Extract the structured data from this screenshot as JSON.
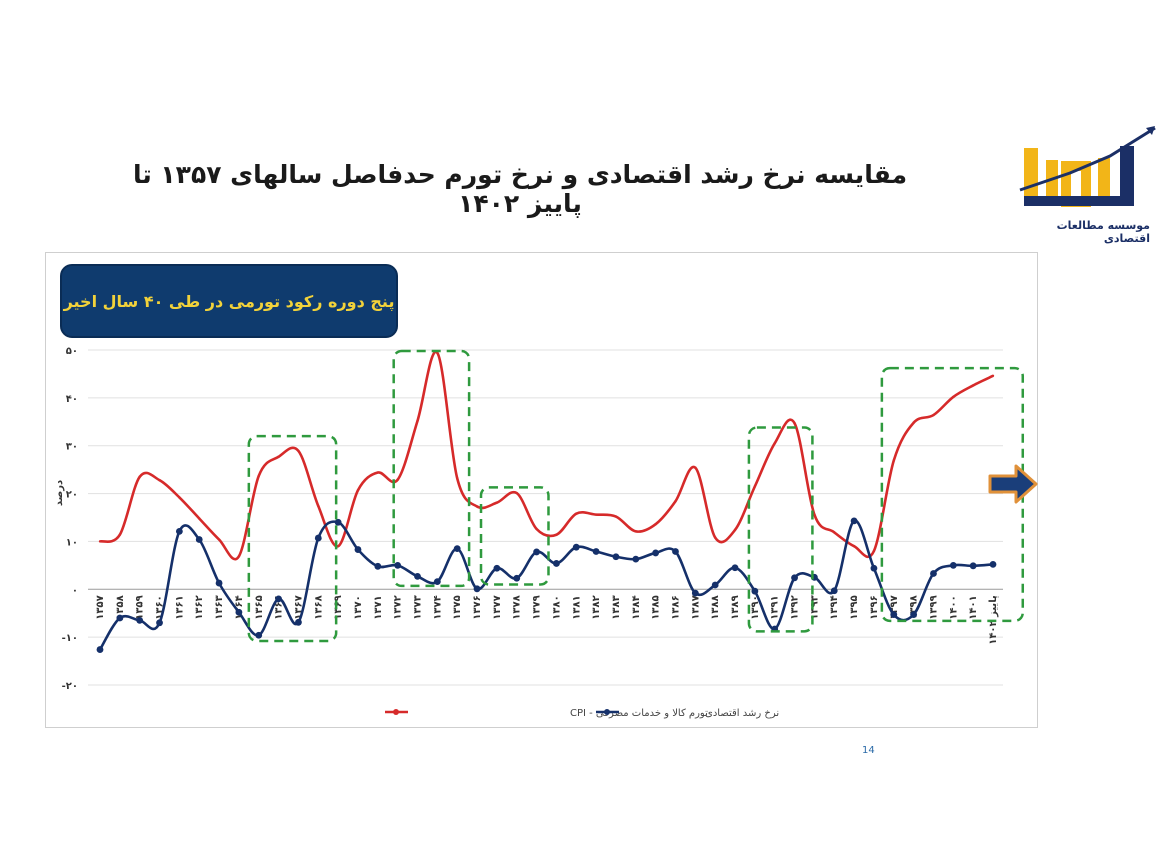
{
  "page": {
    "title": "مقایسه نرخ رشد اقتصادی و نرخ تورم حدفاصل سالهای ۱۳۵۷ تا پاییز ۱۴۰۲",
    "callout": "پنج دوره رکود تورمی در طی ۴۰ سال اخیر",
    "logo_text": "موسسه مطالعات اقتصادی",
    "page_number": "14"
  },
  "colors": {
    "cpi": "#d62a2a",
    "growth": "#15306a",
    "highlight_box": "#2f9a3e",
    "arrow_fill": "#1a3e7a",
    "arrow_border": "#e0913a",
    "callout_bg": "#0f3b6e",
    "callout_text": "#f2d23a"
  },
  "chart_data": {
    "type": "line",
    "ylim": [
      -20,
      50
    ],
    "yticks": [
      "۵۰",
      "۴۰",
      "۳۰",
      "۲۰",
      "۱۰",
      "۰",
      "-۱۰",
      "-۲۰"
    ],
    "ytick_values": [
      50,
      40,
      30,
      20,
      10,
      0,
      -10,
      -20
    ],
    "ylabel": "درصد",
    "grid": true,
    "legend_position": "bottom",
    "categories": [
      "۱۳۵۷",
      "۱۳۵۸",
      "۱۳۵۹",
      "۱۳۶۰",
      "۱۳۶۱",
      "۱۳۶۲",
      "۱۳۶۳",
      "۱۳۶۴",
      "۱۳۶۵",
      "۱۳۶۶",
      "۱۳۶۷",
      "۱۳۶۸",
      "۱۳۶۹",
      "۱۳۷۰",
      "۱۳۷۱",
      "۱۳۷۲",
      "۱۳۷۳",
      "۱۳۷۴",
      "۱۳۷۵",
      "۱۳۷۶",
      "۱۳۷۷",
      "۱۳۷۸",
      "۱۳۷۹",
      "۱۳۸۰",
      "۱۳۸۱",
      "۱۳۸۲",
      "۱۳۸۳",
      "۱۳۸۴",
      "۱۳۸۵",
      "۱۳۸۶",
      "۱۳۸۷",
      "۱۳۸۸",
      "۱۳۸۹",
      "۱۳۹۰",
      "۱۳۹۱",
      "۱۳۹۲",
      "۱۳۹۳",
      "۱۳۹۴",
      "۱۳۹۵",
      "۱۳۹۶",
      "۱۳۹۷",
      "۱۳۹۸",
      "۱۳۹۹",
      "۱۴۰۰",
      "۱۴۰۱",
      "پاییز ۱۴۰۲"
    ],
    "series": [
      {
        "name": "تورم کالا و خدمات مصرفی - CPI",
        "markers": false,
        "values": [
          10.0,
          11.4,
          23.5,
          22.8,
          19.2,
          14.8,
          10.4,
          6.9,
          23.7,
          27.7,
          28.9,
          17.4,
          9.0,
          20.7,
          24.4,
          22.9,
          35.2,
          49.4,
          23.2,
          17.3,
          18.1,
          20.1,
          12.6,
          11.4,
          15.8,
          15.6,
          15.2,
          12.1,
          13.6,
          18.4,
          25.4,
          10.8,
          12.4,
          21.5,
          30.5,
          34.7,
          15.6,
          11.9,
          9.0,
          8.0,
          26.9,
          34.8,
          36.4,
          40.2,
          42.6,
          44.6
        ]
      },
      {
        "name": "نرخ رشد اقتصادی",
        "markers": true,
        "values": [
          -12.6,
          -6.0,
          -6.5,
          -7.0,
          12.1,
          10.4,
          1.3,
          -4.8,
          -9.6,
          -2.0,
          -6.9,
          10.7,
          14.0,
          8.3,
          4.8,
          5.0,
          2.7,
          1.6,
          8.5,
          0.1,
          4.4,
          2.3,
          7.8,
          5.4,
          8.8,
          7.9,
          6.8,
          6.3,
          7.6,
          7.9,
          -0.8,
          0.9,
          4.5,
          -0.4,
          -8.3,
          2.4,
          2.5,
          -0.3,
          14.3,
          4.4,
          -5.3,
          -5.3,
          3.3,
          5.0,
          4.9,
          5.2
        ]
      }
    ],
    "legend": [
      "تورم کالا و خدمات مصرفی - CPI",
      "نرخ رشد اقتصادی"
    ]
  }
}
